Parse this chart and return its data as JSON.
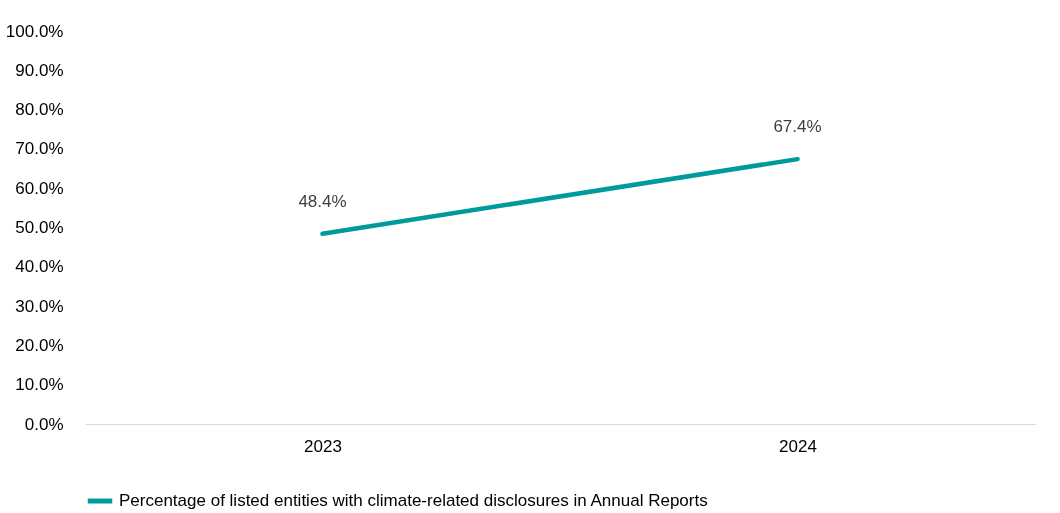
{
  "chart_data": {
    "type": "line",
    "categories": [
      "2023",
      "2024"
    ],
    "series": [
      {
        "name": "Percentage of listed entities with climate-related disclosures in Annual Reports",
        "color": "#009a9a",
        "values": [
          48.4,
          67.4
        ],
        "value_labels": [
          "48.4%",
          "67.4%"
        ]
      }
    ],
    "ylim": [
      0,
      100
    ],
    "yticks": [
      {
        "value": 0,
        "label": "0.0%"
      },
      {
        "value": 10,
        "label": "10.0%"
      },
      {
        "value": 20,
        "label": "20.0%"
      },
      {
        "value": 30,
        "label": "30.0%"
      },
      {
        "value": 40,
        "label": "40.0%"
      },
      {
        "value": 50,
        "label": "50.0%"
      },
      {
        "value": 60,
        "label": "60.0%"
      },
      {
        "value": 70,
        "label": "70.0%"
      },
      {
        "value": 80,
        "label": "80.0%"
      },
      {
        "value": 90,
        "label": "90.0%"
      },
      {
        "value": 100,
        "label": "100.0%"
      }
    ],
    "grid": false,
    "legend": "bottom",
    "marker": "none",
    "line_style": "solid"
  }
}
